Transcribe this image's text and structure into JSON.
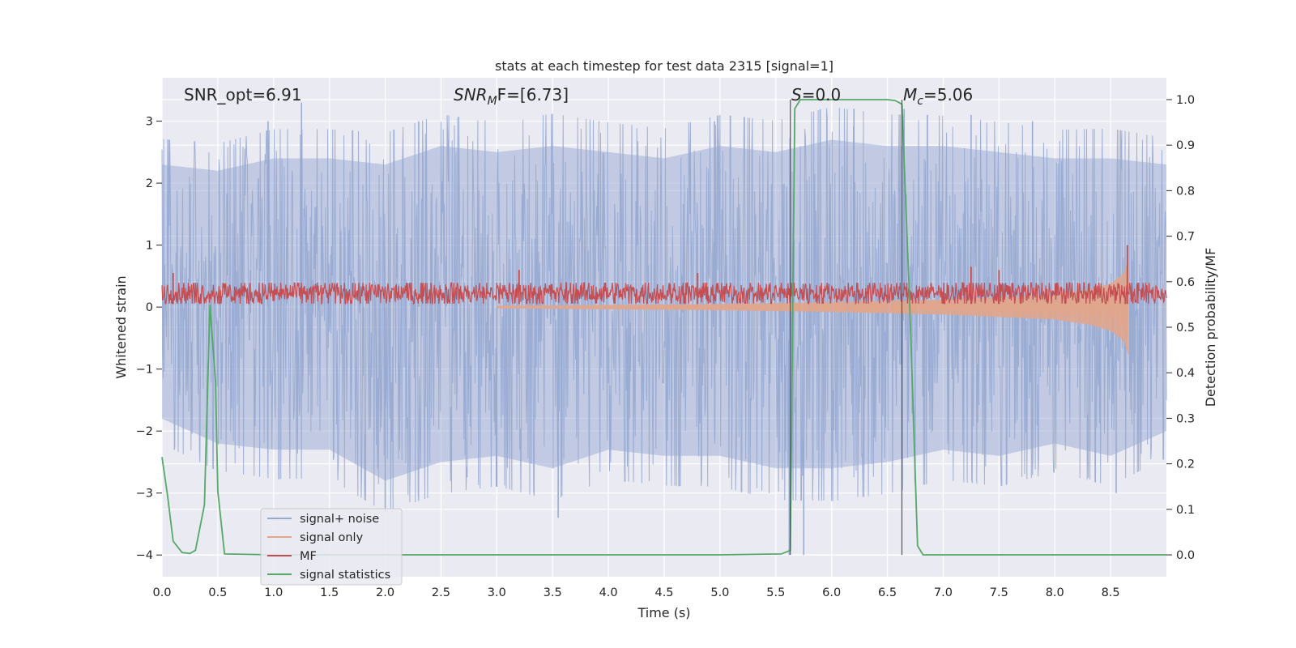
{
  "chart_data": {
    "type": "line",
    "title": "stats at each timestep for test data 2315 [signal=1]",
    "xlabel": "Time (s)",
    "ylabel": "Whitened strain",
    "ylabel_right": "Detection probability/MF",
    "xlim": [
      0,
      9.0
    ],
    "ylim": [
      -4.35,
      3.7
    ],
    "ylim_right": [
      -0.048,
      1.048
    ],
    "x_ticks": [
      0.0,
      0.5,
      1.0,
      1.5,
      2.0,
      2.5,
      3.0,
      3.5,
      4.0,
      4.5,
      5.0,
      5.5,
      6.0,
      6.5,
      7.0,
      7.5,
      8.0,
      8.5
    ],
    "x_tick_labels": [
      "0.0",
      "0.5",
      "1.0",
      "1.5",
      "2.0",
      "2.5",
      "3.0",
      "3.5",
      "4.0",
      "4.5",
      "5.0",
      "5.5",
      "6.0",
      "6.5",
      "7.0",
      "7.5",
      "8.0",
      "8.5"
    ],
    "y_ticks": [
      3,
      2,
      1,
      0,
      -1,
      -2,
      -3,
      -4
    ],
    "y_tick_labels": [
      "3",
      "2",
      "1",
      "0",
      "−1",
      "−2",
      "−3",
      "−4"
    ],
    "y_right_ticks": [
      1.0,
      0.9,
      0.8,
      0.7,
      0.6,
      0.5,
      0.4,
      0.3,
      0.2,
      0.1,
      0.0
    ],
    "y_right_tick_labels": [
      "1.0",
      "0.9",
      "0.8",
      "0.7",
      "0.6",
      "0.5",
      "0.4",
      "0.3",
      "0.2",
      "0.1",
      "0.0"
    ],
    "grid": true,
    "legend_position": "lower-left",
    "annotations": {
      "snr_opt": "SNR_opt=6.91",
      "snr_mf_main": "SNR",
      "snr_mf_sub": "M",
      "snr_mf_rest": "F=[6.73]",
      "s_main": "S",
      "s_rest": "=0.0",
      "mc_main": "M",
      "mc_sub": "c",
      "mc_rest": "=5.06"
    },
    "vertical_lines_x": [
      5.63,
      6.63
    ],
    "series": [
      {
        "name": "signal+ noise",
        "axis": "left",
        "color": "#97a9d1",
        "style": "noise",
        "envelope_upper": [
          [
            0.0,
            2.3
          ],
          [
            0.5,
            2.2
          ],
          [
            1.0,
            2.4
          ],
          [
            1.5,
            2.4
          ],
          [
            2.0,
            2.3
          ],
          [
            2.5,
            2.6
          ],
          [
            3.0,
            2.5
          ],
          [
            3.5,
            2.6
          ],
          [
            4.0,
            2.5
          ],
          [
            4.5,
            2.4
          ],
          [
            5.0,
            2.6
          ],
          [
            5.5,
            2.5
          ],
          [
            6.0,
            2.7
          ],
          [
            6.5,
            2.6
          ],
          [
            7.0,
            2.6
          ],
          [
            7.5,
            2.5
          ],
          [
            8.0,
            2.4
          ],
          [
            8.5,
            2.4
          ],
          [
            9.0,
            2.3
          ]
        ],
        "envelope_lower": [
          [
            0.0,
            -1.8
          ],
          [
            0.5,
            -2.2
          ],
          [
            1.0,
            -2.3
          ],
          [
            1.5,
            -2.3
          ],
          [
            2.0,
            -2.8
          ],
          [
            2.5,
            -2.5
          ],
          [
            3.0,
            -2.4
          ],
          [
            3.5,
            -2.6
          ],
          [
            4.0,
            -2.3
          ],
          [
            4.5,
            -2.4
          ],
          [
            5.0,
            -2.4
          ],
          [
            5.5,
            -2.6
          ],
          [
            6.0,
            -2.6
          ],
          [
            6.5,
            -2.5
          ],
          [
            7.0,
            -2.3
          ],
          [
            7.5,
            -2.4
          ],
          [
            8.0,
            -2.2
          ],
          [
            8.5,
            -2.4
          ],
          [
            9.0,
            -2.0
          ]
        ],
        "peaks": [
          [
            1.25,
            3.3
          ],
          [
            0.95,
            3.0
          ],
          [
            2.3,
            3.0
          ],
          [
            4.95,
            3.0
          ],
          [
            6.2,
            3.2
          ],
          [
            6.65,
            3.2
          ],
          [
            7.25,
            3.1
          ],
          [
            7.8,
            3.0
          ],
          [
            2.0,
            -3.3
          ],
          [
            3.55,
            -3.4
          ],
          [
            5.62,
            -4.0
          ],
          [
            5.75,
            -4.0
          ],
          [
            8.55,
            -3.0
          ],
          [
            3.0,
            -2.9
          ]
        ]
      },
      {
        "name": "signal only",
        "axis": "left",
        "color": "#e1a68c",
        "style": "chirp",
        "envelope": [
          [
            3.0,
            0.02
          ],
          [
            5.0,
            0.05
          ],
          [
            6.0,
            0.08
          ],
          [
            7.0,
            0.12
          ],
          [
            7.5,
            0.16
          ],
          [
            8.0,
            0.2
          ],
          [
            8.3,
            0.28
          ],
          [
            8.5,
            0.38
          ],
          [
            8.62,
            0.55
          ],
          [
            8.66,
            0.78
          ]
        ],
        "end_x": 8.66
      },
      {
        "name": "MF",
        "axis": "left",
        "color": "#c44e52",
        "style": "mf",
        "band": [
          0.05,
          0.4
        ],
        "peaks": [
          [
            0.1,
            0.55
          ],
          [
            3.2,
            0.6
          ],
          [
            4.8,
            0.55
          ],
          [
            7.25,
            0.65
          ],
          [
            7.5,
            0.6
          ],
          [
            8.65,
            1.0
          ]
        ]
      },
      {
        "name": "signal statistics",
        "axis": "right",
        "color": "#55a868",
        "style": "line",
        "points": [
          [
            0.0,
            0.215
          ],
          [
            0.05,
            0.13
          ],
          [
            0.1,
            0.03
          ],
          [
            0.18,
            0.005
          ],
          [
            0.25,
            0.003
          ],
          [
            0.3,
            0.01
          ],
          [
            0.38,
            0.11
          ],
          [
            0.43,
            0.55
          ],
          [
            0.48,
            0.38
          ],
          [
            0.5,
            0.14
          ],
          [
            0.56,
            0.002
          ],
          [
            1.0,
            0.0
          ],
          [
            2.0,
            0.0
          ],
          [
            3.0,
            0.0
          ],
          [
            4.0,
            0.0
          ],
          [
            5.0,
            0.0
          ],
          [
            5.55,
            0.002
          ],
          [
            5.63,
            0.01
          ],
          [
            5.67,
            0.98
          ],
          [
            5.72,
            1.0
          ],
          [
            6.0,
            1.0
          ],
          [
            6.5,
            1.0
          ],
          [
            6.57,
            0.998
          ],
          [
            6.63,
            0.99
          ],
          [
            6.7,
            0.55
          ],
          [
            6.77,
            0.02
          ],
          [
            6.82,
            0.0
          ],
          [
            7.0,
            0.0
          ],
          [
            8.0,
            0.0
          ],
          [
            9.0,
            0.0
          ]
        ]
      }
    ]
  }
}
